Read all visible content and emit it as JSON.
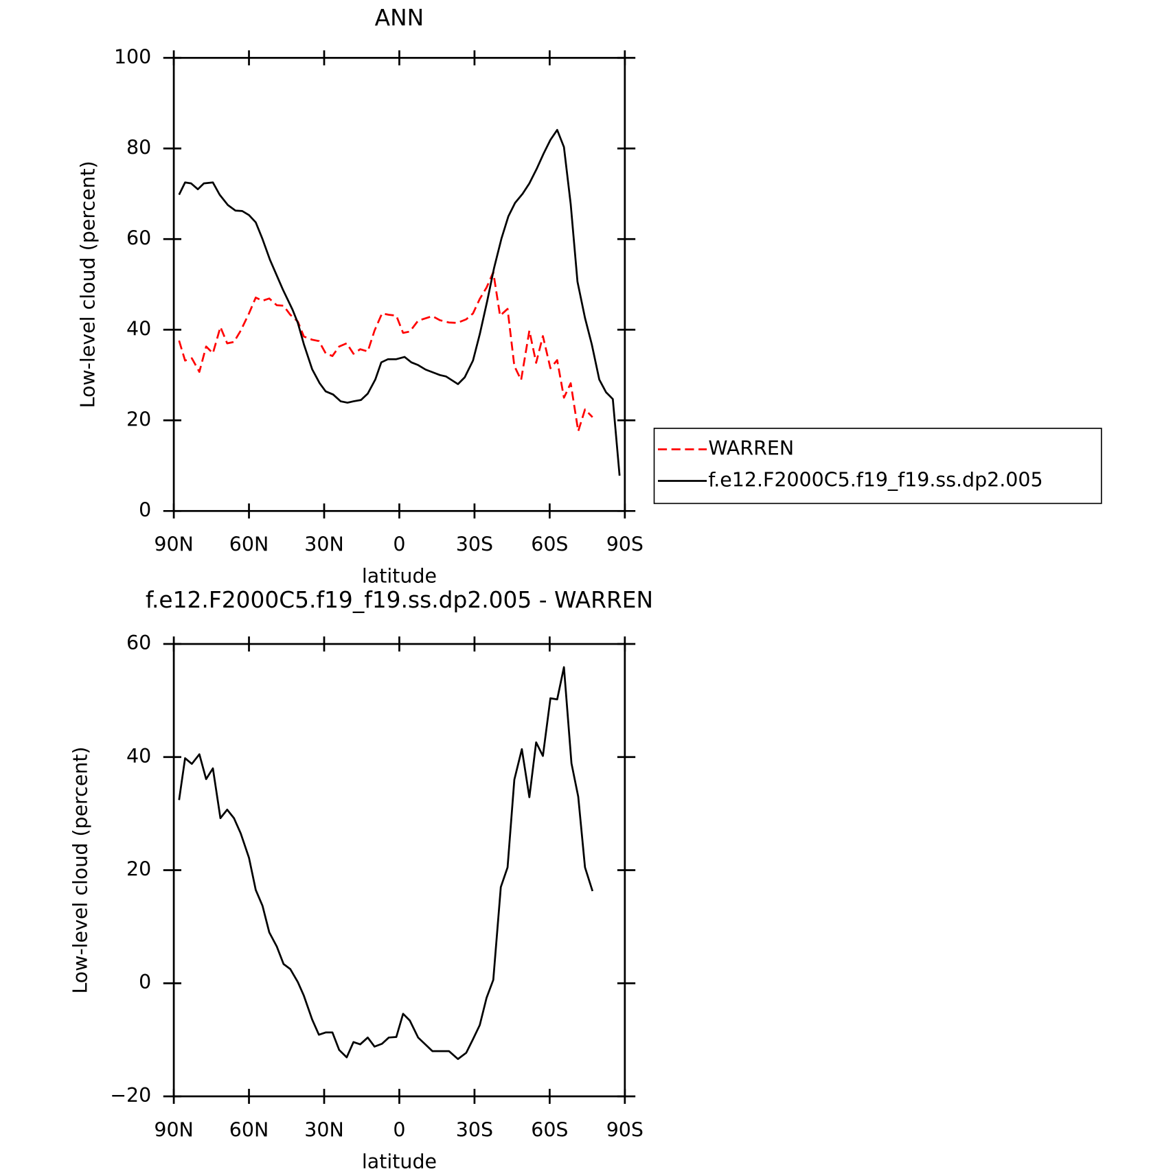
{
  "chart_data": [
    {
      "type": "line",
      "title": "ANN",
      "xlabel": "latitude",
      "ylabel": "Low-level cloud (percent)",
      "xlim": [
        90,
        -90
      ],
      "xticks": [
        {
          "value": 90,
          "label": "90N"
        },
        {
          "value": 60,
          "label": "60N"
        },
        {
          "value": 30,
          "label": "30N"
        },
        0,
        {
          "value": -30,
          "label": "30S"
        },
        {
          "value": -60,
          "label": "60S"
        },
        {
          "value": -90,
          "label": "90S"
        }
      ],
      "ylim": [
        0,
        100
      ],
      "yticks": [
        0,
        20,
        40,
        60,
        80,
        100
      ],
      "legend": "right",
      "series": [
        {
          "name": "WARREN",
          "color": "#ff0000",
          "linestyle": "dashed",
          "x": [
            87.9,
            85.5,
            82.8,
            79.8,
            77.1,
            74.4,
            71.4,
            68.7,
            66.0,
            63.3,
            60.0,
            57.3,
            54.6,
            51.9,
            48.9,
            46.2,
            43.5,
            40.5,
            38.1,
            34.8,
            32.1,
            29.4,
            26.7,
            24.0,
            21.0,
            18.3,
            15.6,
            12.6,
            9.9,
            6.9,
            4.2,
            1.2,
            -1.5,
            -4.2,
            -7.5,
            -13.2,
            -16.2,
            -19.8,
            -23.1,
            -26.7,
            -29.4,
            -32.1,
            -34.8,
            -37.5,
            -40.2,
            -43.2,
            -45.9,
            -48.6,
            -51.9,
            -54.6,
            -57.3,
            -60.3,
            -63.0,
            -65.7,
            -68.4,
            -71.4,
            -74.1,
            -77.1
          ],
          "values": [
            37.6,
            33.2,
            33.7,
            30.7,
            36.3,
            34.8,
            40.6,
            37.0,
            37.3,
            39.8,
            43.6,
            47.1,
            46.4,
            46.9,
            45.4,
            45.3,
            43.3,
            41.8,
            38.5,
            37.8,
            37.5,
            34.8,
            34.2,
            36.3,
            37.0,
            34.7,
            35.7,
            35.2,
            39.8,
            43.6,
            43.3,
            43.1,
            39.3,
            39.6,
            42.0,
            43.0,
            42.1,
            41.6,
            41.5,
            42.3,
            43.6,
            46.8,
            49.3,
            52.7,
            43.1,
            44.6,
            32.0,
            28.9,
            39.8,
            32.7,
            38.6,
            31.5,
            33.3,
            25.0,
            28.2,
            17.6,
            22.4,
            20.7
          ]
        },
        {
          "name": "f.e12.F2000C5.f19_f19.ss.dp2.005",
          "color": "#000000",
          "linestyle": "solid",
          "x": [
            87.9,
            85.5,
            83.1,
            80.4,
            78.0,
            74.4,
            71.7,
            68.4,
            65.4,
            62.7,
            60.0,
            57.3,
            54.6,
            51.6,
            46.5,
            42.6,
            40.5,
            38.1,
            34.8,
            31.8,
            29.4,
            26.4,
            23.4,
            20.7,
            18.3,
            15.3,
            12.6,
            9.6,
            7.2,
            4.5,
            1.2,
            -2.1,
            -4.8,
            -7.5,
            -10.5,
            -16.2,
            -18.6,
            -23.4,
            -26.1,
            -29.4,
            -32.1,
            -35.1,
            -37.8,
            -40.8,
            -43.5,
            -46.2,
            -49.2,
            -51.9,
            -54.9,
            -57.6,
            -60.3,
            -63.0,
            -65.7,
            -68.4,
            -71.1,
            -74.1,
            -76.8,
            -79.8,
            -82.5,
            -85.2,
            -87.9
          ],
          "values": [
            69.8,
            72.5,
            72.3,
            71.0,
            72.3,
            72.5,
            69.8,
            67.5,
            66.3,
            66.2,
            65.3,
            63.7,
            60.0,
            55.4,
            48.9,
            44.4,
            41.5,
            36.8,
            31.3,
            28.2,
            26.4,
            25.7,
            24.2,
            23.9,
            24.2,
            24.5,
            25.9,
            29.0,
            32.8,
            33.5,
            33.5,
            34.0,
            32.8,
            32.2,
            31.2,
            30.0,
            29.7,
            28.0,
            29.5,
            33.2,
            39.0,
            46.4,
            53.6,
            60.2,
            65.0,
            68.0,
            70.0,
            72.3,
            75.6,
            78.9,
            81.9,
            84.1,
            80.3,
            67.7,
            50.6,
            42.6,
            36.8,
            29.0,
            26.2,
            24.7,
            7.8
          ]
        }
      ]
    },
    {
      "type": "line",
      "title": "f.e12.F2000C5.f19_f19.ss.dp2.005 - WARREN",
      "xlabel": "latitude",
      "ylabel": "Low-level cloud (percent)",
      "xlim": [
        90,
        -90
      ],
      "xticks": [
        {
          "value": 90,
          "label": "90N"
        },
        {
          "value": 60,
          "label": "60N"
        },
        {
          "value": 30,
          "label": "30N"
        },
        0,
        {
          "value": -30,
          "label": "30S"
        },
        {
          "value": -60,
          "label": "60S"
        },
        {
          "value": -90,
          "label": "90S"
        }
      ],
      "ylim": [
        -20,
        60
      ],
      "yticks": [
        {
          "value": -20,
          "label": "−20"
        },
        0,
        20,
        40,
        60
      ],
      "series": [
        {
          "color": "#000000",
          "linestyle": "solid",
          "x": [
            87.9,
            85.5,
            82.8,
            79.8,
            77.1,
            74.4,
            71.4,
            68.7,
            66.0,
            63.3,
            60.0,
            57.3,
            54.6,
            51.9,
            48.9,
            46.2,
            43.5,
            40.5,
            38.1,
            34.8,
            32.1,
            29.4,
            26.7,
            24.0,
            21.0,
            18.3,
            15.6,
            12.6,
            9.9,
            6.9,
            4.2,
            1.2,
            -1.5,
            -4.2,
            -7.5,
            -13.2,
            -19.8,
            -23.4,
            -26.7,
            -29.4,
            -32.1,
            -34.8,
            -37.5,
            -40.5,
            -43.2,
            -45.9,
            -48.9,
            -51.9,
            -54.6,
            -57.3,
            -60.3,
            -63.0,
            -65.7,
            -68.7,
            -71.4,
            -74.1,
            -77.1
          ],
          "values": [
            32.4,
            39.8,
            38.8,
            40.5,
            36.1,
            38.0,
            29.2,
            30.7,
            29.2,
            26.5,
            22.2,
            16.5,
            13.7,
            9.0,
            6.5,
            3.4,
            2.5,
            0.2,
            -2.2,
            -6.4,
            -9.1,
            -8.7,
            -8.7,
            -11.8,
            -13.1,
            -10.4,
            -10.8,
            -9.6,
            -11.2,
            -10.7,
            -9.6,
            -9.5,
            -5.4,
            -6.6,
            -9.6,
            -12.0,
            -12.0,
            -13.4,
            -12.3,
            -9.9,
            -7.4,
            -2.6,
            0.6,
            17.0,
            20.5,
            36.0,
            41.4,
            32.9,
            42.6,
            40.2,
            50.4,
            50.2,
            55.9,
            38.9,
            33.0,
            20.5,
            16.3
          ]
        }
      ]
    }
  ]
}
